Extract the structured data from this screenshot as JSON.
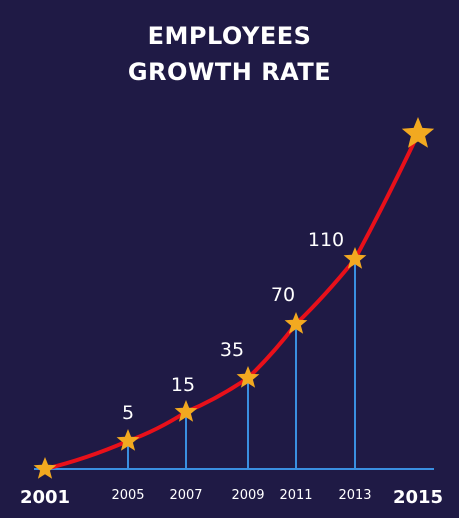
{
  "chart_data": {
    "type": "line",
    "title_line1": "EMPLOYEES",
    "title_line2": "GROWTH RATE",
    "x": [
      "2001",
      "2005",
      "2007",
      "2009",
      "2011",
      "2013",
      "2015"
    ],
    "values": [
      0,
      5,
      15,
      35,
      70,
      110,
      null
    ],
    "data_labels": [
      "",
      "5",
      "15",
      "35",
      "70",
      "110",
      ""
    ],
    "colors": {
      "background": "#1f1a45",
      "line": "#e8101a",
      "marker": "#f2a920",
      "axis": "#3a8fe0",
      "text": "#ffffff"
    },
    "marker": "star-icon",
    "grid": false
  }
}
